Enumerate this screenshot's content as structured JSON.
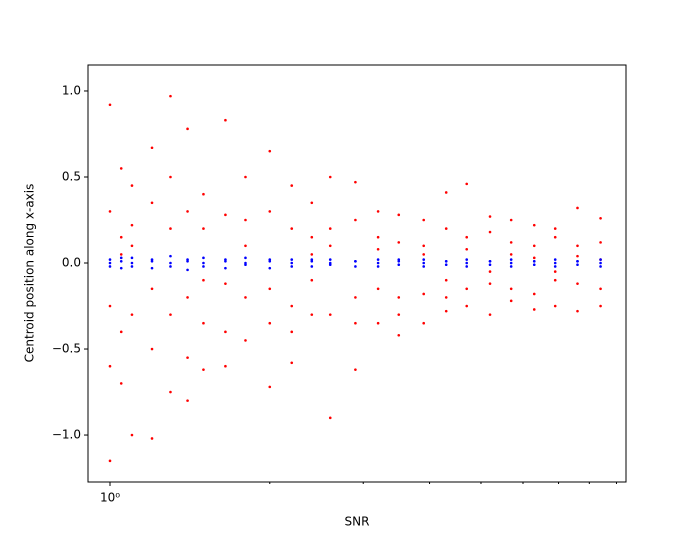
{
  "chart_data": {
    "type": "scatter",
    "xlabel": "SNR",
    "ylabel": "Centroid position along x-axis",
    "xscale": "log",
    "xlim": [
      0.909,
      9.38
    ],
    "xticks": [
      {
        "value": 1,
        "label": "10⁰"
      }
    ],
    "xminorticks": [
      2,
      3,
      4,
      5,
      6,
      7,
      8,
      9
    ],
    "ylim": [
      -1.273,
      1.151
    ],
    "yticks": [
      {
        "value": -1.0,
        "label": "−1.0"
      },
      {
        "value": -0.5,
        "label": "−0.5"
      },
      {
        "value": 0.0,
        "label": "0.0"
      },
      {
        "value": 0.5,
        "label": "0.5"
      },
      {
        "value": 1.0,
        "label": "1.0"
      }
    ],
    "series": [
      {
        "color": "#ff0000",
        "x": [
          1,
          1,
          1,
          1,
          1,
          1.05,
          1.05,
          1.05,
          1.05,
          1.05,
          1.1,
          1.1,
          1.1,
          1.1,
          1.1,
          1.2,
          1.2,
          1.2,
          1.2,
          1.2,
          1.3,
          1.3,
          1.3,
          1.3,
          1.3,
          1.4,
          1.4,
          1.4,
          1.4,
          1.4,
          1.5,
          1.5,
          1.5,
          1.5,
          1.5,
          1.65,
          1.65,
          1.65,
          1.65,
          1.65,
          1.8,
          1.8,
          1.8,
          1.8,
          1.8,
          2,
          2,
          2,
          2,
          2,
          2.2,
          2.2,
          2.2,
          2.2,
          2.2,
          2.4,
          2.4,
          2.4,
          2.4,
          2.4,
          2.6,
          2.6,
          2.6,
          2.6,
          2.6,
          2.9,
          2.9,
          2.9,
          2.9,
          2.9,
          3.2,
          3.2,
          3.2,
          3.2,
          3.2,
          3.5,
          3.5,
          3.5,
          3.5,
          3.5,
          3.9,
          3.9,
          3.9,
          3.9,
          3.9,
          4.3,
          4.3,
          4.3,
          4.3,
          4.3,
          4.7,
          4.7,
          4.7,
          4.7,
          4.7,
          5.2,
          5.2,
          5.2,
          5.2,
          5.2,
          5.7,
          5.7,
          5.7,
          5.7,
          5.7,
          6.3,
          6.3,
          6.3,
          6.3,
          6.3,
          6.9,
          6.9,
          6.9,
          6.9,
          6.9,
          7.6,
          7.6,
          7.6,
          7.6,
          7.6,
          8.4,
          8.4,
          8.4,
          8.4,
          8.4
        ],
        "values": [
          0.92,
          -0.6,
          0.3,
          -0.25,
          -1.15,
          0.55,
          -0.4,
          0.15,
          -0.7,
          0.05,
          0.45,
          -0.3,
          0.22,
          -1.0,
          0.1,
          0.67,
          -0.5,
          0.35,
          -0.15,
          -1.02,
          0.97,
          -0.3,
          0.5,
          -0.75,
          0.2,
          0.78,
          -0.55,
          0.3,
          -0.2,
          -0.8,
          0.4,
          -0.62,
          0.2,
          -0.1,
          -0.35,
          0.83,
          -0.4,
          0.28,
          -0.12,
          -0.6,
          0.5,
          -0.45,
          0.25,
          -0.2,
          0.1,
          0.65,
          -0.35,
          0.3,
          -0.15,
          -0.72,
          0.45,
          -0.4,
          0.2,
          -0.25,
          -0.58,
          0.35,
          -0.3,
          0.15,
          -0.1,
          0.05,
          0.5,
          -0.9,
          0.2,
          -0.3,
          0.1,
          0.47,
          -0.62,
          0.25,
          -0.2,
          -0.35,
          0.3,
          -0.35,
          0.15,
          -0.15,
          0.08,
          0.28,
          -0.3,
          0.12,
          -0.2,
          -0.42,
          0.25,
          -0.35,
          0.1,
          -0.18,
          0.05,
          0.41,
          -0.28,
          0.2,
          -0.1,
          -0.2,
          0.46,
          -0.25,
          0.15,
          -0.15,
          0.08,
          0.27,
          -0.3,
          0.18,
          -0.12,
          -0.05,
          0.25,
          -0.22,
          0.12,
          -0.15,
          0.05,
          0.22,
          -0.27,
          0.1,
          -0.18,
          0.03,
          0.2,
          -0.25,
          0.15,
          -0.1,
          -0.05,
          0.32,
          -0.28,
          0.1,
          -0.12,
          0.04,
          0.26,
          -0.25,
          0.12,
          -0.15,
          0.02
        ]
      },
      {
        "color": "#0000ff",
        "x": [
          1,
          1,
          1,
          1.05,
          1.05,
          1.05,
          1.1,
          1.1,
          1.1,
          1.2,
          1.2,
          1.2,
          1.3,
          1.3,
          1.3,
          1.4,
          1.4,
          1.4,
          1.5,
          1.5,
          1.5,
          1.65,
          1.65,
          1.65,
          1.8,
          1.8,
          1.8,
          2,
          2,
          2,
          2.2,
          2.2,
          2.2,
          2.4,
          2.4,
          2.4,
          2.6,
          2.6,
          2.6,
          2.9,
          2.9,
          2.9,
          3.2,
          3.2,
          3.2,
          3.5,
          3.5,
          3.5,
          3.9,
          3.9,
          3.9,
          4.3,
          4.3,
          4.3,
          4.7,
          4.7,
          4.7,
          5.2,
          5.2,
          5.2,
          5.7,
          5.7,
          5.7,
          6.3,
          6.3,
          6.3,
          6.9,
          6.9,
          6.9,
          7.6,
          7.6,
          7.6,
          8.4,
          8.4,
          8.4
        ],
        "values": [
          0.02,
          -0.02,
          0.0,
          0.01,
          -0.03,
          0.03,
          0.03,
          -0.02,
          0.0,
          0.02,
          -0.03,
          0.01,
          0.04,
          -0.02,
          0.0,
          0.02,
          -0.04,
          0.01,
          0.03,
          -0.02,
          0.0,
          0.01,
          -0.03,
          0.02,
          0.03,
          -0.01,
          0.0,
          0.02,
          -0.03,
          0.01,
          0.02,
          -0.02,
          0.0,
          0.01,
          -0.02,
          0.02,
          0.02,
          -0.01,
          0.0,
          0.01,
          -0.02,
          0.01,
          0.02,
          -0.02,
          0.0,
          0.01,
          -0.01,
          0.02,
          0.02,
          -0.02,
          0.0,
          0.01,
          -0.01,
          0.01,
          0.02,
          -0.02,
          0.0,
          0.01,
          -0.01,
          0.01,
          0.02,
          -0.02,
          0.0,
          0.01,
          -0.01,
          0.01,
          0.02,
          -0.02,
          0.0,
          0.01,
          -0.01,
          0.01,
          0.02,
          -0.02,
          0.0
        ]
      }
    ]
  }
}
